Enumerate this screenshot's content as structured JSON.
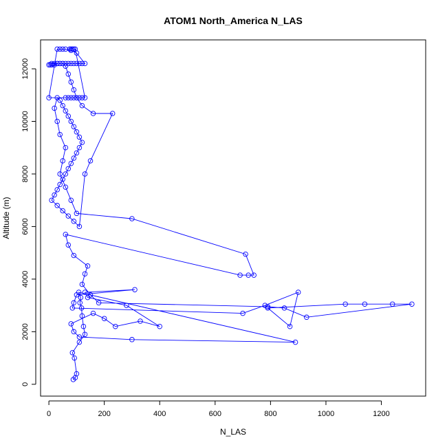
{
  "chart_data": {
    "type": "line",
    "title": "ATOM1 North_America N_LAS",
    "xlabel": "N_LAS",
    "ylabel": "Altitude (m)",
    "xlim": [
      -30,
      1360
    ],
    "ylim": [
      -450,
      13100
    ],
    "xticks": [
      0,
      200,
      400,
      600,
      800,
      1000,
      1200
    ],
    "yticks": [
      0,
      2000,
      4000,
      6000,
      8000,
      10000,
      12000
    ],
    "grid": false,
    "legend": "none",
    "colors": {
      "series": "#0000ff"
    },
    "series": [
      {
        "x": [
          88,
          95,
          100,
          92,
          85,
          110,
          130,
          125,
          120,
          118,
          112,
          115,
          108,
          890,
          300,
          110,
          90,
          80,
          160,
          200,
          240,
          330,
          400,
          280,
          140,
          130,
          310,
          100,
          90,
          85,
          700,
          780,
          900,
          870,
          790,
          1070,
          1140,
          1240,
          1310,
          930,
          850,
          790,
          180,
          150,
          120,
          130,
          140,
          90,
          70,
          60,
          690,
          720,
          740,
          710,
          300,
          100,
          80,
          60,
          40,
          50,
          60,
          40,
          30,
          20,
          30,
          40,
          50,
          60,
          70,
          80,
          90,
          100,
          110,
          120,
          110,
          100,
          90,
          80,
          70,
          60,
          50,
          40,
          30,
          20,
          10,
          30,
          50,
          70,
          90,
          110,
          130,
          150,
          230,
          160,
          120,
          100,
          90,
          80,
          70,
          60,
          50,
          40,
          30,
          20,
          10,
          5,
          0,
          10,
          20,
          30,
          40,
          50,
          60,
          70,
          80,
          90,
          100,
          110,
          120,
          130,
          100,
          80,
          60,
          50,
          40,
          30,
          0,
          60,
          70,
          80,
          90,
          100,
          110,
          120,
          130,
          95,
          90,
          85,
          80,
          75
        ],
        "y": [
          180,
          250,
          400,
          1000,
          1200,
          1600,
          1900,
          2200,
          2600,
          2900,
          3100,
          3300,
          3500,
          1600,
          1700,
          1800,
          2000,
          2300,
          2700,
          2500,
          2200,
          2400,
          2200,
          3000,
          3300,
          3500,
          3600,
          3400,
          3100,
          2900,
          2700,
          3000,
          3500,
          2200,
          2900,
          3050,
          3050,
          3050,
          3050,
          2550,
          2900,
          2950,
          3100,
          3400,
          3800,
          4200,
          4500,
          4900,
          5300,
          5700,
          4150,
          4150,
          4150,
          4950,
          6300,
          6500,
          7000,
          7500,
          8000,
          8500,
          9000,
          9500,
          10000,
          10500,
          10900,
          10800,
          10600,
          10400,
          10200,
          10000,
          9800,
          9600,
          9400,
          9200,
          9000,
          8800,
          8600,
          8400,
          8200,
          8000,
          7800,
          7600,
          7400,
          7200,
          7000,
          6800,
          6600,
          6400,
          6200,
          6000,
          8000,
          8500,
          10300,
          10300,
          10600,
          10900,
          11200,
          11500,
          11800,
          12100,
          12200,
          12200,
          12200,
          12200,
          12200,
          12150,
          12150,
          12150,
          12150,
          12200,
          12200,
          12200,
          12200,
          12200,
          12200,
          12200,
          12200,
          12200,
          12200,
          12200,
          12600,
          12700,
          12750,
          12750,
          12750,
          12750,
          10900,
          10900,
          10900,
          10900,
          10900,
          10900,
          10900,
          10900,
          10900,
          12750,
          12750,
          12750,
          12750,
          12750
        ]
      }
    ]
  }
}
